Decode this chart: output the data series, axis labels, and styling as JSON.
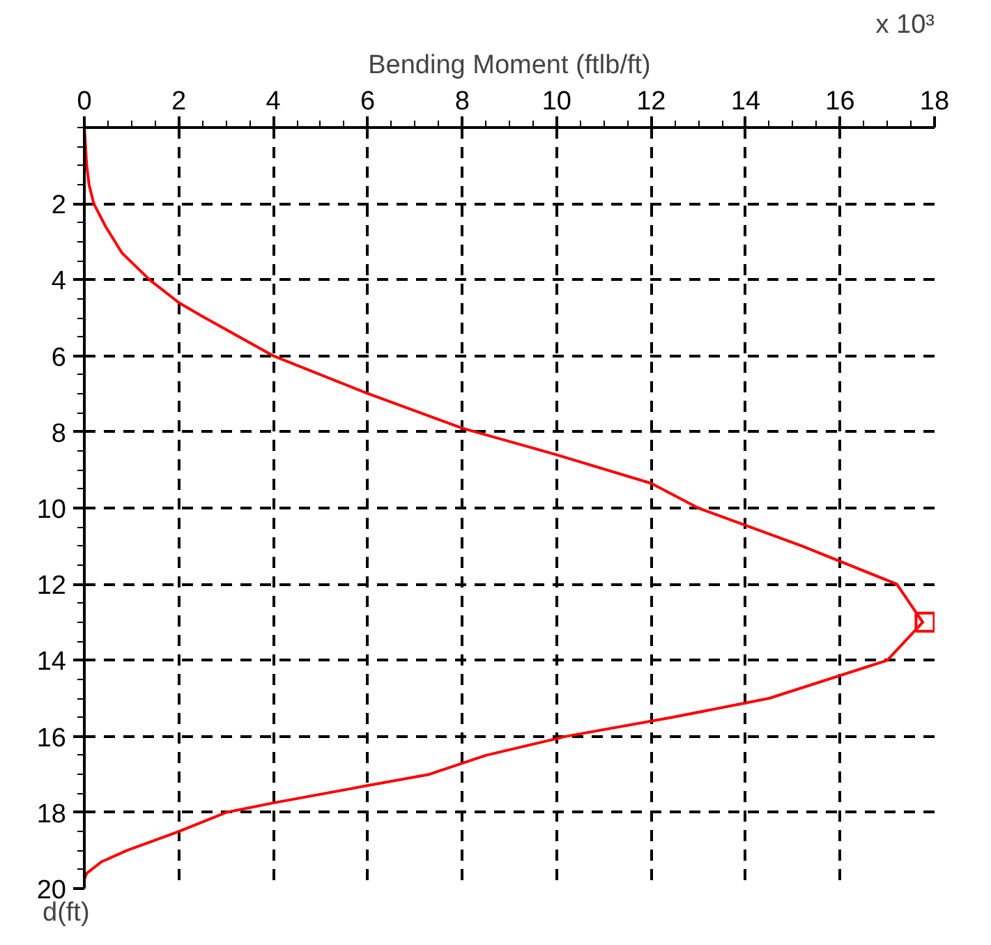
{
  "chart_data": {
    "type": "line",
    "xlabel": "Bending Moment (ftlb/ft)",
    "ylabel": "d(ft)",
    "annotations": [
      "x 10³"
    ],
    "xlim": [
      0,
      18
    ],
    "xticks": [
      0,
      2,
      4,
      6,
      8,
      10,
      12,
      14,
      16,
      18
    ],
    "ylim": [
      20,
      0
    ],
    "yticks": [
      2,
      4,
      6,
      8,
      10,
      12,
      14,
      16,
      18,
      20
    ],
    "grid": true,
    "marker": "none",
    "line_style": "solid",
    "series": [
      {
        "color": "#ff0000",
        "x": [
          0,
          0.05,
          0.1,
          0.2,
          0.45,
          0.8,
          1.38,
          2,
          2.48,
          4,
          5.96,
          8,
          10,
          12,
          13,
          15.2,
          17.2,
          17.75,
          17.0,
          14.5,
          12.45,
          10.2,
          8.5,
          7.3,
          5.97,
          4,
          3.0,
          2,
          0.9,
          0.36,
          0.05,
          0
        ],
        "values": [
          0,
          1,
          1.5,
          2,
          2.6,
          3.3,
          4,
          4.6,
          4.95,
          6,
          6.97,
          7.9,
          8.6,
          9.35,
          10,
          11,
          12,
          13,
          14,
          15,
          15.5,
          16,
          16.5,
          17,
          17.3,
          17.75,
          18,
          18.5,
          19,
          19.3,
          19.6,
          19.75
        ]
      },
      {
        "type": "scatter",
        "marker": "square",
        "color": "#ff0000",
        "x": [
          17.8
        ],
        "values": [
          13
        ]
      }
    ]
  }
}
